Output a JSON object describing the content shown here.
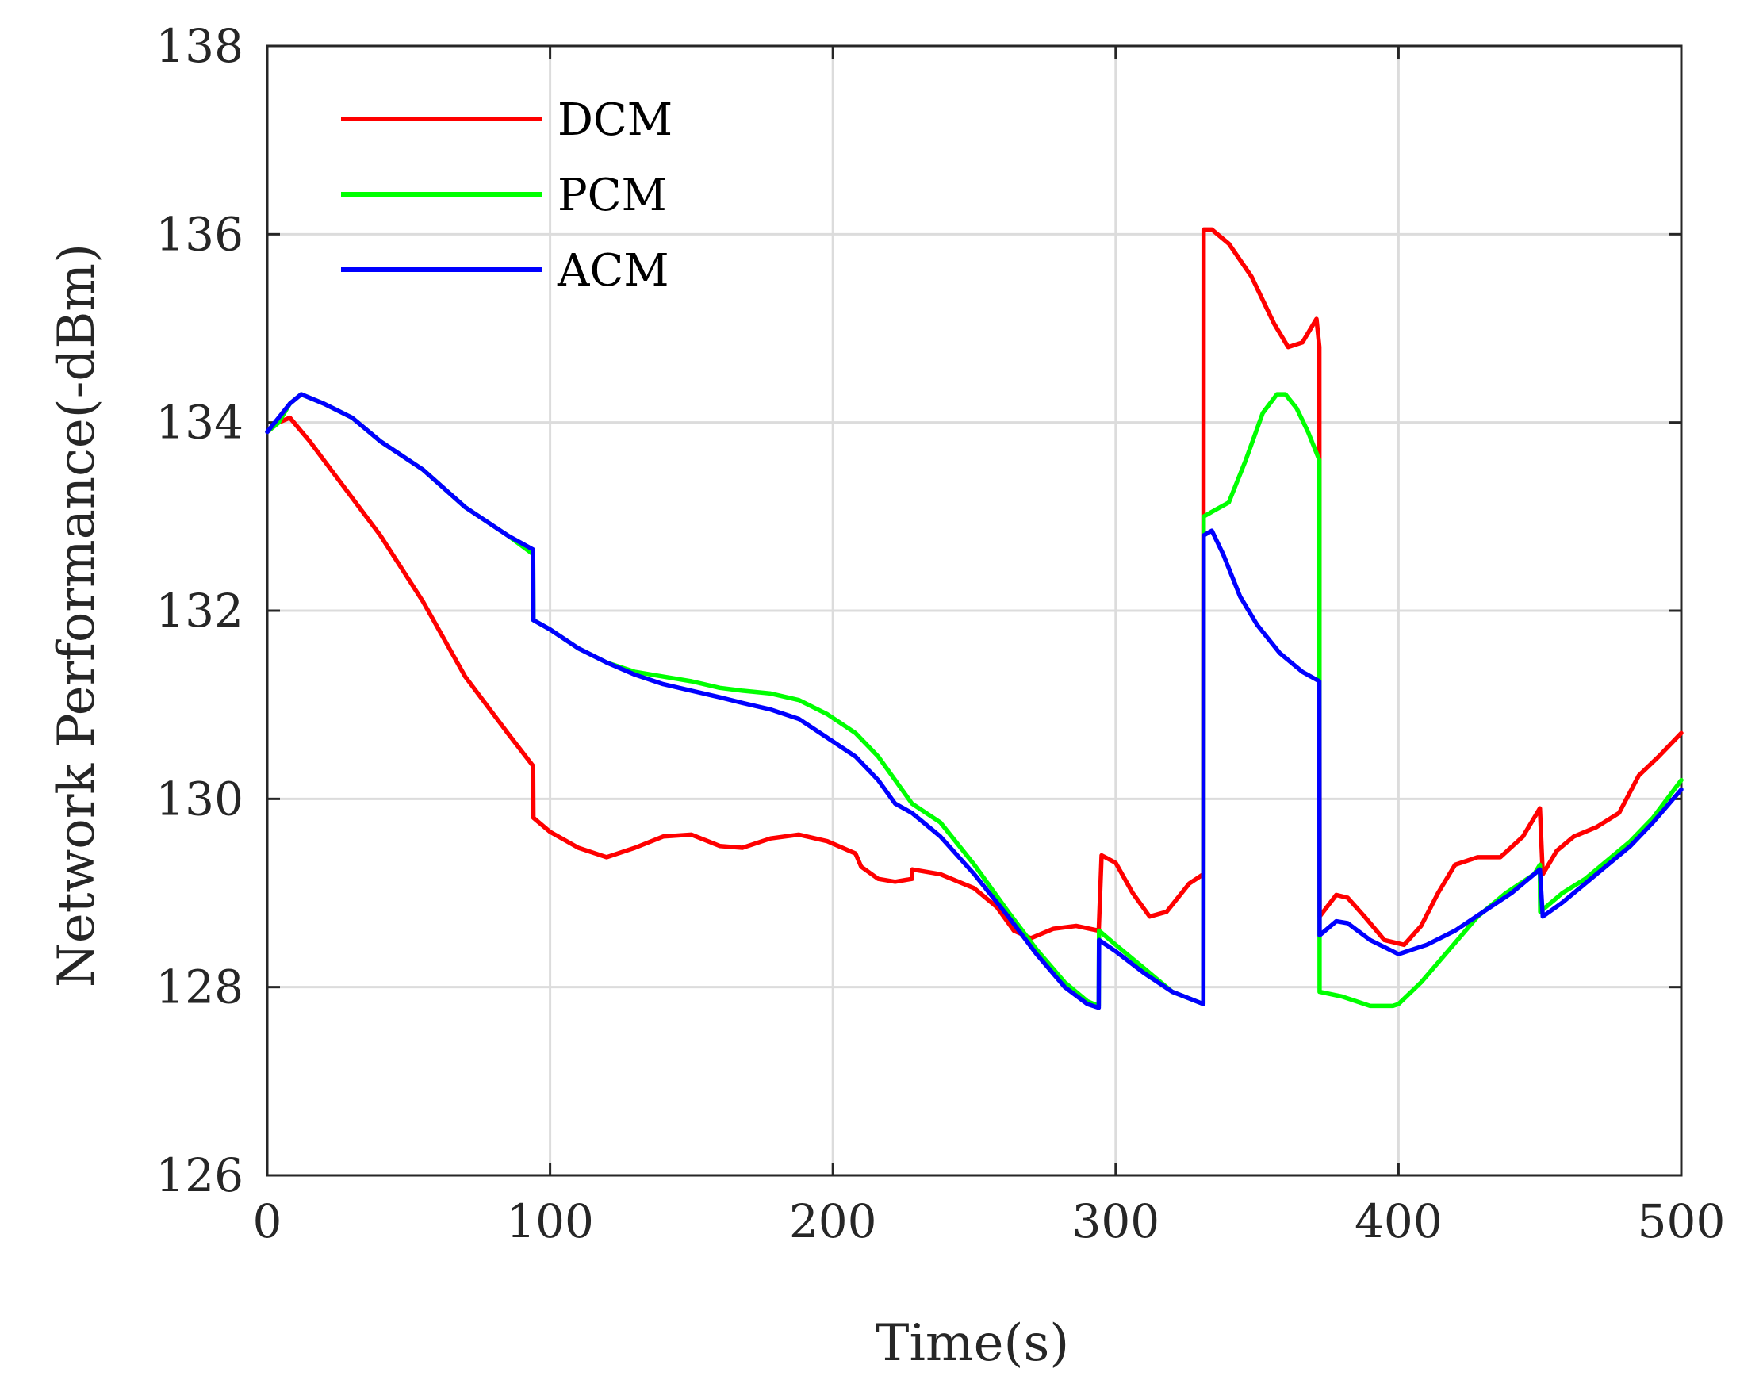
{
  "chart_data": {
    "type": "line",
    "title": "",
    "xlabel": "Time(s)",
    "ylabel": "Network Performance(-dBm)",
    "xlim": [
      0,
      500
    ],
    "ylim": [
      126,
      138
    ],
    "xticks": [
      "0",
      "100",
      "200",
      "300",
      "400",
      "500"
    ],
    "yticks": [
      "126",
      "128",
      "130",
      "132",
      "134",
      "136",
      "138"
    ],
    "grid": true,
    "legend_position": "top-left",
    "series": [
      {
        "name": "DCM",
        "color": "#ff0000",
        "points": [
          [
            0,
            133.9
          ],
          [
            4,
            134.0
          ],
          [
            8,
            134.05
          ],
          [
            15,
            133.8
          ],
          [
            25,
            133.4
          ],
          [
            40,
            132.8
          ],
          [
            55,
            132.1
          ],
          [
            70,
            131.3
          ],
          [
            85,
            130.7
          ],
          [
            94,
            130.35
          ],
          [
            94.1,
            129.8
          ],
          [
            100,
            129.65
          ],
          [
            110,
            129.48
          ],
          [
            120,
            129.38
          ],
          [
            130,
            129.48
          ],
          [
            140,
            129.6
          ],
          [
            150,
            129.62
          ],
          [
            160,
            129.5
          ],
          [
            168,
            129.48
          ],
          [
            178,
            129.58
          ],
          [
            188,
            129.62
          ],
          [
            198,
            129.55
          ],
          [
            208,
            129.42
          ],
          [
            210,
            129.28
          ],
          [
            216,
            129.15
          ],
          [
            222,
            129.12
          ],
          [
            228,
            129.15
          ],
          [
            228.1,
            129.25
          ],
          [
            238,
            129.2
          ],
          [
            250,
            129.05
          ],
          [
            258,
            128.85
          ],
          [
            264,
            128.6
          ],
          [
            270,
            128.52
          ],
          [
            278,
            128.62
          ],
          [
            286,
            128.65
          ],
          [
            294,
            128.6
          ],
          [
            295,
            129.4
          ],
          [
            300,
            129.32
          ],
          [
            306,
            129.0
          ],
          [
            312,
            128.75
          ],
          [
            318,
            128.8
          ],
          [
            326,
            129.1
          ],
          [
            331,
            129.2
          ],
          [
            331.1,
            136.05
          ],
          [
            334,
            136.05
          ],
          [
            340,
            135.9
          ],
          [
            348,
            135.55
          ],
          [
            356,
            135.05
          ],
          [
            361,
            134.8
          ],
          [
            366,
            134.85
          ],
          [
            371,
            135.1
          ],
          [
            372,
            134.8
          ],
          [
            372.1,
            128.75
          ],
          [
            378,
            128.98
          ],
          [
            382,
            128.95
          ],
          [
            388,
            128.75
          ],
          [
            395,
            128.5
          ],
          [
            402,
            128.45
          ],
          [
            408,
            128.65
          ],
          [
            414,
            129.0
          ],
          [
            420,
            129.3
          ],
          [
            428,
            129.38
          ],
          [
            436,
            129.38
          ],
          [
            444,
            129.6
          ],
          [
            450,
            129.9
          ],
          [
            451,
            129.2
          ],
          [
            456,
            129.45
          ],
          [
            462,
            129.6
          ],
          [
            470,
            129.7
          ],
          [
            478,
            129.85
          ],
          [
            485,
            130.25
          ],
          [
            492,
            130.45
          ],
          [
            500,
            130.7
          ]
        ]
      },
      {
        "name": "PCM",
        "color": "#00ff00",
        "points": [
          [
            0,
            133.9
          ],
          [
            4,
            134.0
          ],
          [
            8,
            134.2
          ],
          [
            12,
            134.3
          ],
          [
            20,
            134.2
          ],
          [
            30,
            134.05
          ],
          [
            40,
            133.8
          ],
          [
            55,
            133.5
          ],
          [
            70,
            133.1
          ],
          [
            85,
            132.8
          ],
          [
            94,
            132.6
          ],
          [
            94.1,
            131.9
          ],
          [
            100,
            131.8
          ],
          [
            110,
            131.6
          ],
          [
            120,
            131.45
          ],
          [
            130,
            131.35
          ],
          [
            140,
            131.3
          ],
          [
            150,
            131.25
          ],
          [
            160,
            131.18
          ],
          [
            168,
            131.15
          ],
          [
            178,
            131.12
          ],
          [
            188,
            131.05
          ],
          [
            198,
            130.9
          ],
          [
            208,
            130.7
          ],
          [
            216,
            130.45
          ],
          [
            222,
            130.2
          ],
          [
            228,
            129.95
          ],
          [
            238,
            129.75
          ],
          [
            250,
            129.3
          ],
          [
            262,
            128.8
          ],
          [
            272,
            128.4
          ],
          [
            282,
            128.05
          ],
          [
            290,
            127.85
          ],
          [
            294,
            127.8
          ],
          [
            294.1,
            128.6
          ],
          [
            300,
            128.45
          ],
          [
            310,
            128.2
          ],
          [
            320,
            127.95
          ],
          [
            326,
            127.88
          ],
          [
            331,
            127.82
          ],
          [
            331.1,
            133.0
          ],
          [
            334,
            133.05
          ],
          [
            340,
            133.15
          ],
          [
            346,
            133.6
          ],
          [
            352,
            134.1
          ],
          [
            357,
            134.3
          ],
          [
            360,
            134.3
          ],
          [
            364,
            134.15
          ],
          [
            368,
            133.9
          ],
          [
            372,
            133.6
          ],
          [
            372.1,
            127.95
          ],
          [
            380,
            127.9
          ],
          [
            390,
            127.8
          ],
          [
            398,
            127.8
          ],
          [
            400,
            127.82
          ],
          [
            408,
            128.05
          ],
          [
            418,
            128.4
          ],
          [
            428,
            128.75
          ],
          [
            438,
            129.0
          ],
          [
            448,
            129.2
          ],
          [
            450,
            129.3
          ],
          [
            450.1,
            128.8
          ],
          [
            458,
            129.0
          ],
          [
            466,
            129.15
          ],
          [
            474,
            129.35
          ],
          [
            482,
            129.55
          ],
          [
            490,
            129.8
          ],
          [
            500,
            130.2
          ]
        ]
      },
      {
        "name": "ACM",
        "color": "#0000ff",
        "points": [
          [
            0,
            133.9
          ],
          [
            4,
            134.05
          ],
          [
            8,
            134.2
          ],
          [
            12,
            134.3
          ],
          [
            20,
            134.2
          ],
          [
            30,
            134.05
          ],
          [
            40,
            133.8
          ],
          [
            55,
            133.5
          ],
          [
            70,
            133.1
          ],
          [
            85,
            132.8
          ],
          [
            94,
            132.65
          ],
          [
            94.1,
            131.9
          ],
          [
            100,
            131.8
          ],
          [
            110,
            131.6
          ],
          [
            120,
            131.45
          ],
          [
            130,
            131.32
          ],
          [
            140,
            131.22
          ],
          [
            150,
            131.15
          ],
          [
            160,
            131.08
          ],
          [
            168,
            131.02
          ],
          [
            178,
            130.95
          ],
          [
            188,
            130.85
          ],
          [
            198,
            130.65
          ],
          [
            208,
            130.45
          ],
          [
            216,
            130.2
          ],
          [
            222,
            129.95
          ],
          [
            228,
            129.85
          ],
          [
            238,
            129.6
          ],
          [
            250,
            129.2
          ],
          [
            262,
            128.75
          ],
          [
            272,
            128.35
          ],
          [
            282,
            128.0
          ],
          [
            290,
            127.82
          ],
          [
            294,
            127.78
          ],
          [
            294.1,
            128.5
          ],
          [
            300,
            128.38
          ],
          [
            310,
            128.15
          ],
          [
            320,
            127.95
          ],
          [
            326,
            127.88
          ],
          [
            331,
            127.82
          ],
          [
            331.1,
            132.8
          ],
          [
            334,
            132.85
          ],
          [
            338,
            132.6
          ],
          [
            344,
            132.15
          ],
          [
            350,
            131.85
          ],
          [
            358,
            131.55
          ],
          [
            366,
            131.35
          ],
          [
            372,
            131.25
          ],
          [
            372.1,
            128.55
          ],
          [
            378,
            128.7
          ],
          [
            382,
            128.68
          ],
          [
            390,
            128.5
          ],
          [
            400,
            128.35
          ],
          [
            410,
            128.45
          ],
          [
            420,
            128.6
          ],
          [
            430,
            128.8
          ],
          [
            440,
            129.0
          ],
          [
            450,
            129.25
          ],
          [
            451,
            128.75
          ],
          [
            458,
            128.9
          ],
          [
            466,
            129.1
          ],
          [
            474,
            129.3
          ],
          [
            482,
            129.5
          ],
          [
            490,
            129.75
          ],
          [
            500,
            130.1
          ]
        ]
      }
    ]
  }
}
